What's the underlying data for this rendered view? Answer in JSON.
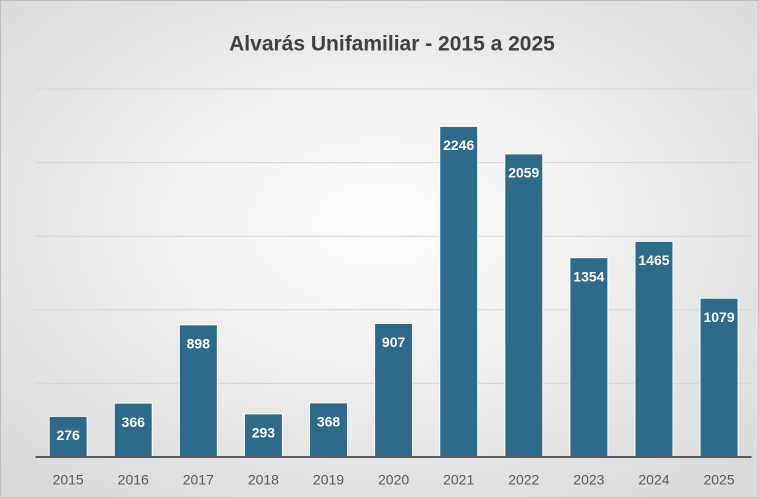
{
  "chart_data": {
    "type": "bar",
    "title": "Alvarás Unifamiliar - 2015 a 2025",
    "categories": [
      "2015",
      "2016",
      "2017",
      "2018",
      "2019",
      "2020",
      "2021",
      "2022",
      "2023",
      "2024",
      "2025"
    ],
    "values": [
      276,
      366,
      898,
      293,
      368,
      907,
      2246,
      2059,
      1354,
      1465,
      1079
    ],
    "color": "#2e6b8a",
    "ylim": [
      0,
      2500
    ],
    "yticks": [
      0,
      500,
      1000,
      1500,
      2000,
      2500
    ],
    "grid": true
  }
}
